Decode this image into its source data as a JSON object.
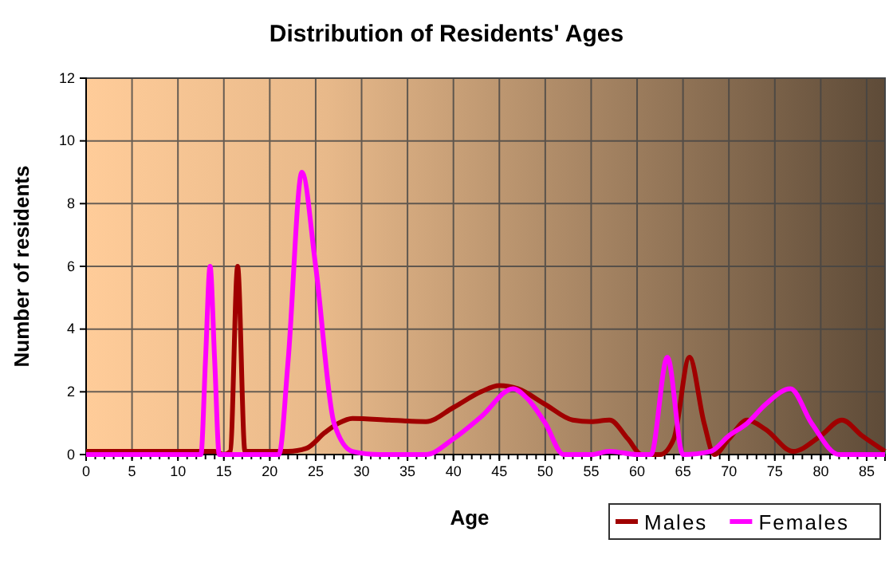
{
  "chart_data": {
    "type": "line",
    "title": "Distribution of Residents' Ages",
    "xlabel": "Age",
    "ylabel": "Number of residents",
    "xlim": [
      0,
      87
    ],
    "xticks": [
      0,
      5,
      10,
      15,
      20,
      25,
      30,
      35,
      40,
      45,
      50,
      55,
      60,
      65,
      70,
      75,
      80,
      85
    ],
    "ylim": [
      0,
      12
    ],
    "yticks": [
      0,
      2,
      4,
      6,
      8,
      10,
      12
    ],
    "grid": true,
    "legend": "bottom right",
    "marker": "none",
    "line_style": "solid",
    "series": [
      {
        "name": "Males",
        "color": "#a00000",
        "x": [
          0,
          14,
          15,
          15.7,
          16.5,
          17.3,
          18,
          22,
          24,
          26,
          27.5,
          29,
          33,
          37,
          40,
          43,
          45,
          47,
          50,
          53,
          55,
          57,
          59,
          60.5,
          62.5,
          64,
          65.7,
          67.3,
          68.4,
          70,
          72,
          74,
          77,
          80,
          82.3,
          84.5,
          87
        ],
        "values": [
          0.1,
          0.1,
          0,
          0.1,
          6,
          0.1,
          0.1,
          0.1,
          0.2,
          0.7,
          1,
          1.15,
          1.1,
          1.05,
          1.5,
          2,
          2.2,
          2.1,
          1.6,
          1.1,
          1.05,
          1.1,
          0.5,
          0,
          0,
          0.5,
          3.1,
          1,
          0,
          0.5,
          1.1,
          0.8,
          0.1,
          0.6,
          1.1,
          0.6,
          0.1
        ]
      },
      {
        "name": "Females",
        "color": "#ff00ff",
        "x": [
          0,
          12.5,
          13,
          13.5,
          14,
          14.5,
          21,
          22,
          23.5,
          25,
          27,
          29,
          32,
          37,
          40,
          43,
          46.5,
          48,
          50,
          52,
          55,
          57,
          60,
          61.5,
          63.3,
          65,
          68,
          70,
          72,
          74,
          76.7,
          79,
          82,
          87
        ],
        "values": [
          0,
          0,
          3,
          6,
          3,
          0,
          0,
          3,
          9,
          6,
          1,
          0.1,
          0,
          0,
          0.5,
          1.2,
          2.1,
          1.8,
          1,
          0,
          0,
          0.1,
          0,
          0,
          3.1,
          0,
          0.1,
          0.6,
          1,
          1.6,
          2.1,
          1,
          0,
          0
        ]
      }
    ]
  }
}
